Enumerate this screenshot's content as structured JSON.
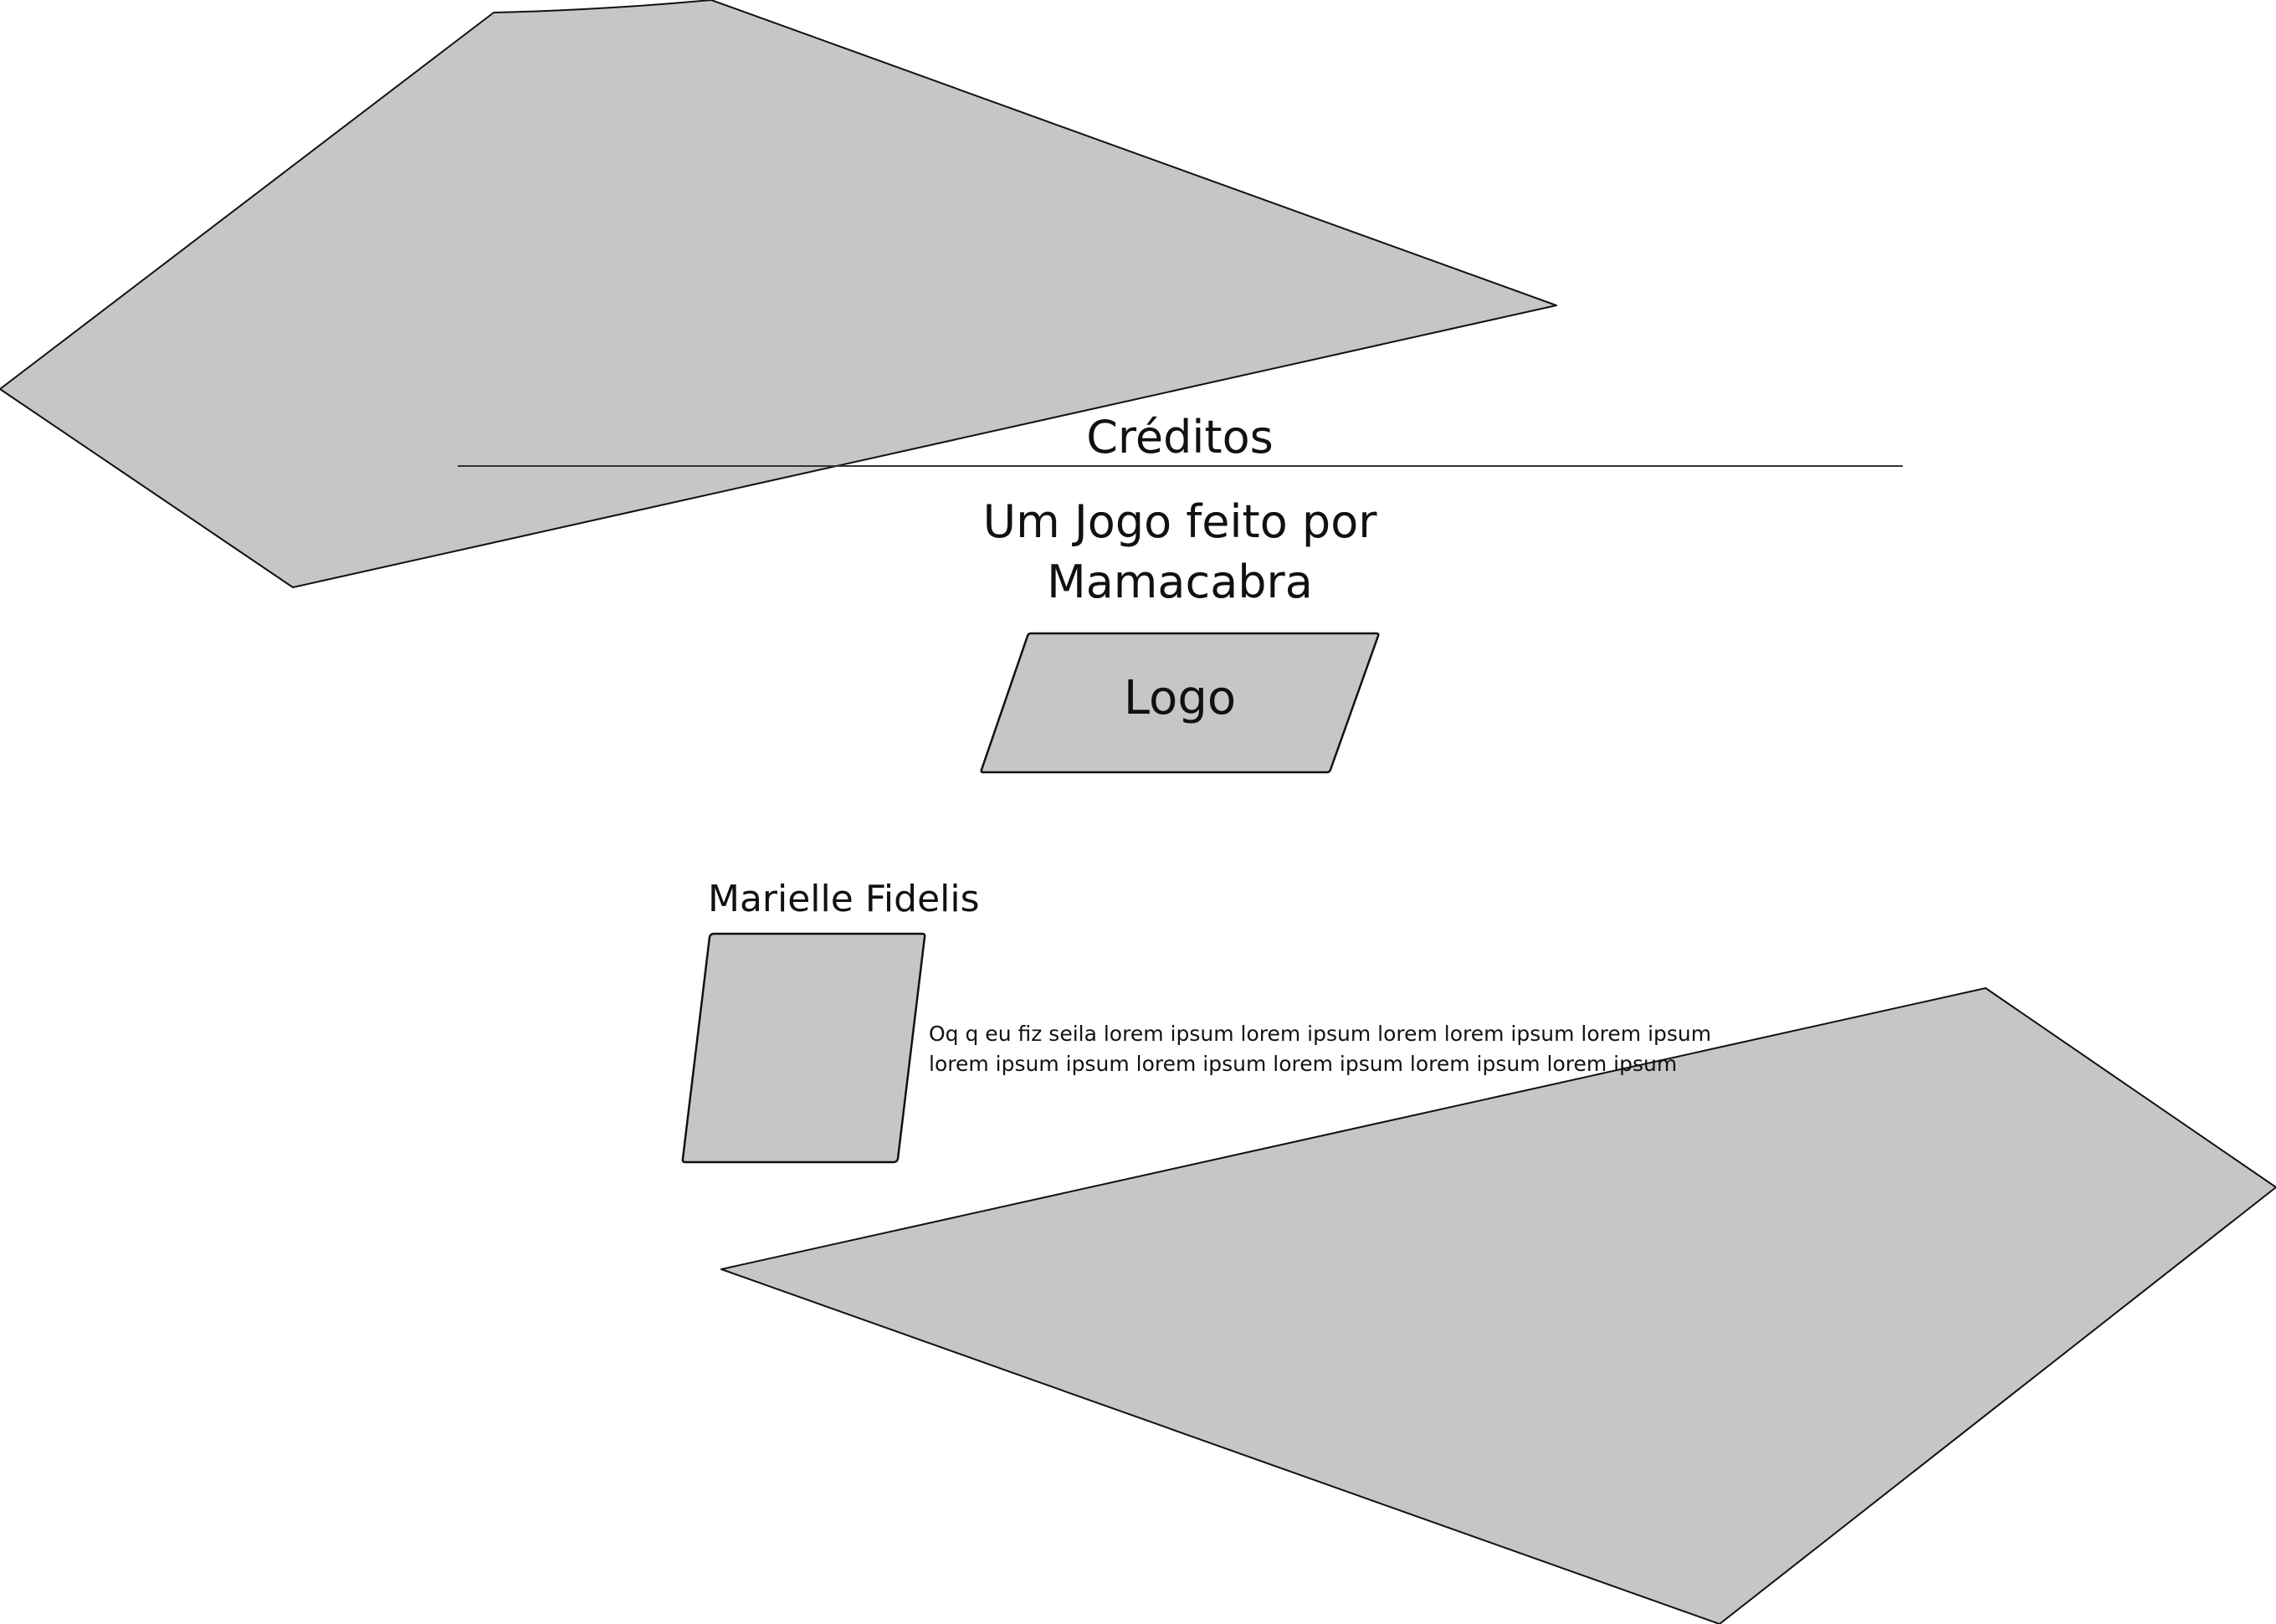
{
  "screen": {
    "title": "Créditos",
    "subtitle_line1": "Um Jogo feito por",
    "subtitle_line2": "Mamacabra"
  },
  "logo": {
    "label": "Logo"
  },
  "credits": [
    {
      "name": "Marielle Fidelis",
      "description_line1": "Oq q eu fiz seila lorem ipsum lorem ipsum lorem lorem ipsum lorem ipsum",
      "description_line2": "lorem ipsum ipsum lorem ipsum lorem ipsum lorem ipsum lorem ipsum"
    }
  ],
  "colors": {
    "background": "#ffffff",
    "shape_fill": "#c6c6c6",
    "stroke": "#111111"
  }
}
